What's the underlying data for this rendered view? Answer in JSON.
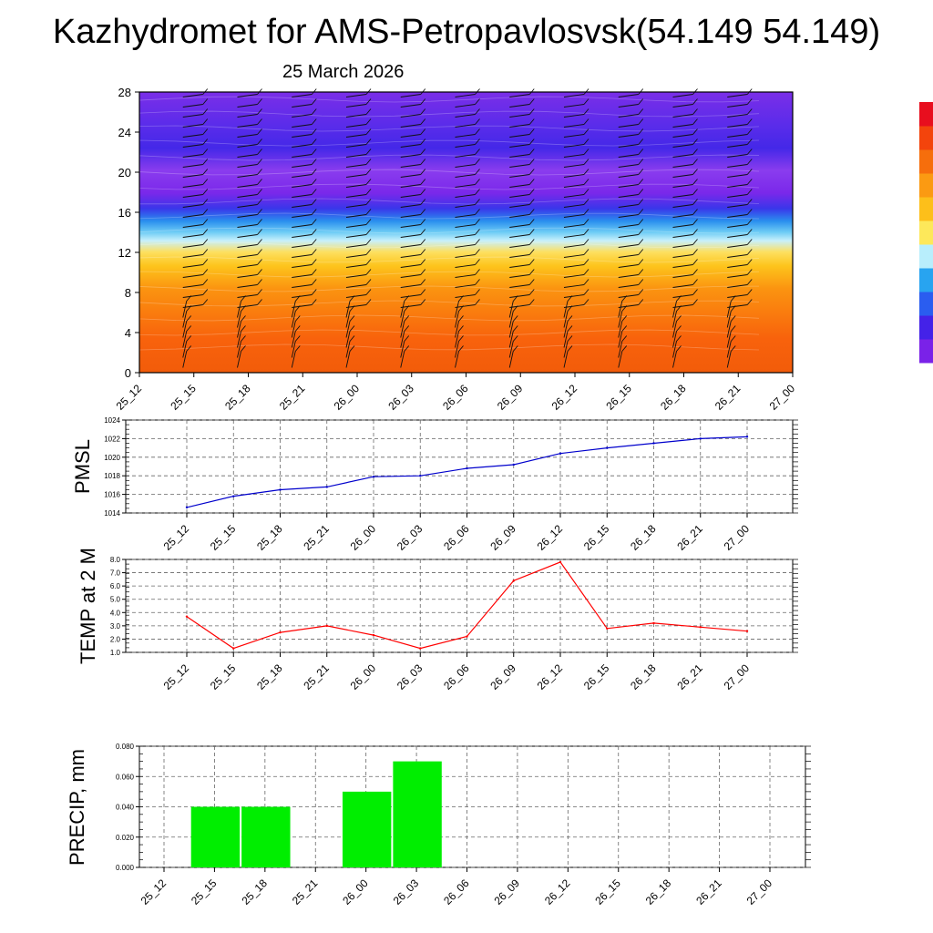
{
  "title": "Kazhydromet for AMS-Petropavlosvsk(54.149 54.149)",
  "date": "25 March 2026",
  "time_labels": [
    "25_12",
    "25_15",
    "25_18",
    "25_21",
    "26_00",
    "26_03",
    "26_06",
    "26_09",
    "26_12",
    "26_15",
    "26_18",
    "26_21",
    "27_00"
  ],
  "chart_data": [
    {
      "type": "heatmap",
      "name": "cross-section",
      "x": [
        "25_12",
        "25_15",
        "25_18",
        "25_21",
        "26_00",
        "26_03",
        "26_06",
        "26_09",
        "26_12",
        "26_15",
        "26_18",
        "26_21",
        "27_00"
      ],
      "yticks": [
        0,
        4,
        8,
        12,
        16,
        20,
        24,
        28
      ],
      "ylim": [
        0,
        28
      ],
      "colorbar": [
        "#7a22e8",
        "#4422e8",
        "#2a5df0",
        "#28a4f0",
        "#b8eefc",
        "#fde85a",
        "#fdbf1a",
        "#fb9a12",
        "#f66e0c",
        "#f3440c",
        "#e80e1e"
      ]
    },
    {
      "type": "line",
      "name": "PMSL",
      "ylabel": "PMSL",
      "x": [
        "25_12",
        "25_15",
        "25_18",
        "25_21",
        "26_00",
        "26_03",
        "26_06",
        "26_09",
        "26_12",
        "26_15",
        "26_18",
        "26_21",
        "27_00"
      ],
      "values": [
        1014.6,
        1015.8,
        1016.5,
        1016.8,
        1017.9,
        1018.0,
        1018.8,
        1019.2,
        1020.4,
        1021.0,
        1021.5,
        1022.0,
        1022.2
      ],
      "ylim": [
        1014,
        1024
      ],
      "yticks": [
        "1014",
        "1016",
        "1018",
        "1020",
        "1022",
        "1024"
      ],
      "color": "#0000cc"
    },
    {
      "type": "line",
      "name": "TEMP",
      "ylabel": "TEMP at 2 M",
      "x": [
        "25_12",
        "25_15",
        "25_18",
        "25_21",
        "26_00",
        "26_03",
        "26_06",
        "26_09",
        "26_12",
        "26_15",
        "26_18",
        "26_21",
        "27_00"
      ],
      "values": [
        3.7,
        1.3,
        2.5,
        3.0,
        2.3,
        1.3,
        2.2,
        6.4,
        7.8,
        2.8,
        3.2,
        2.9,
        2.6
      ],
      "ylim": [
        1.0,
        8.0
      ],
      "yticks": [
        "1.0",
        "2.0",
        "3.0",
        "4.0",
        "5.0",
        "6.0",
        "7.0",
        "8.0"
      ],
      "color": "#ff0000"
    },
    {
      "type": "bar",
      "name": "PRECIP",
      "ylabel": "PRECIP, mm",
      "categories": [
        "25_12",
        "25_15",
        "25_18",
        "25_21",
        "26_00",
        "26_03",
        "26_06",
        "26_09",
        "26_12",
        "26_15",
        "26_18",
        "26_21",
        "27_00"
      ],
      "values": [
        0,
        0.04,
        0.04,
        0,
        0.05,
        0.07,
        0,
        0,
        0,
        0,
        0,
        0,
        0
      ],
      "ylim": [
        0,
        0.08
      ],
      "yticks": [
        "0.000",
        "0.020",
        "0.040",
        "0.060",
        "0.080"
      ],
      "color": "#00ee00"
    }
  ]
}
